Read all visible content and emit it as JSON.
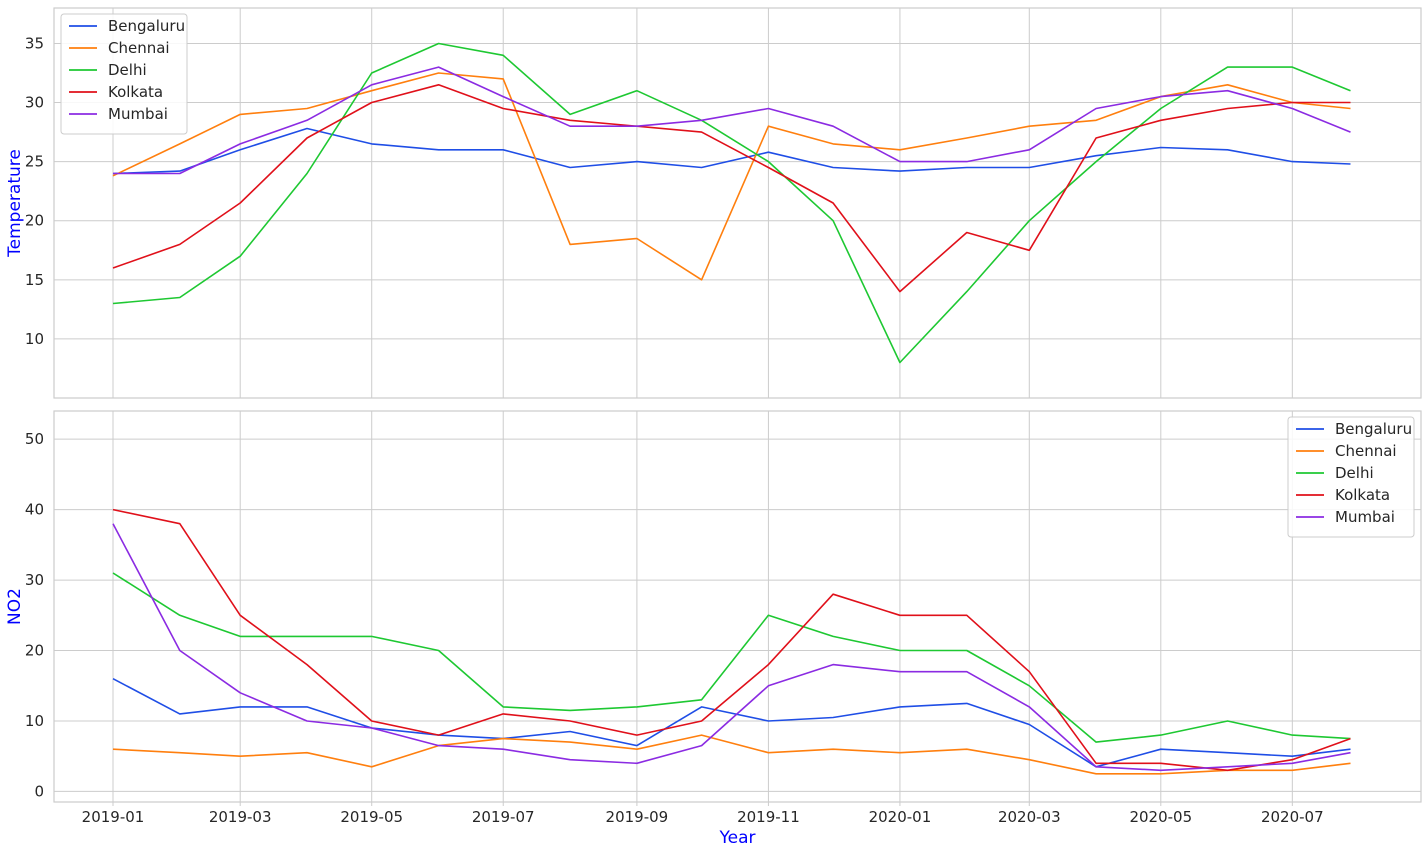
{
  "chart_data": [
    {
      "type": "line",
      "ylabel": "Temperature",
      "xlabel": "",
      "ylim": [
        5.0,
        38.0
      ],
      "yticks": [
        10,
        15,
        20,
        25,
        30,
        35
      ],
      "x_start": "2019-01-01",
      "x_end": "2020-07-31",
      "xticks": [
        "2019-01",
        "2019-03",
        "2019-05",
        "2019-07",
        "2019-09",
        "2019-11",
        "2020-01",
        "2020-03",
        "2020-05",
        "2020-07"
      ],
      "grid": true,
      "legend": "top-left",
      "x": [
        "2019-01-01",
        "2019-02-01",
        "2019-03-01",
        "2019-04-01",
        "2019-05-01",
        "2019-06-01",
        "2019-07-01",
        "2019-08-01",
        "2019-09-01",
        "2019-10-01",
        "2019-11-01",
        "2019-12-01",
        "2020-01-01",
        "2020-02-01",
        "2020-03-01",
        "2020-04-01",
        "2020-05-01",
        "2020-06-01",
        "2020-07-01",
        "2020-07-28"
      ],
      "series": [
        {
          "name": "Bengaluru",
          "color": "#1f4ee6",
          "values": [
            24.0,
            24.2,
            26.0,
            27.8,
            26.5,
            26.0,
            26.0,
            24.5,
            25.0,
            24.5,
            25.8,
            24.5,
            24.2,
            24.5,
            24.5,
            25.5,
            26.2,
            26.0,
            25.0,
            24.8
          ]
        },
        {
          "name": "Chennai",
          "color": "#ff7f0e",
          "values": [
            23.8,
            26.5,
            29.0,
            29.5,
            31.0,
            32.5,
            32.0,
            18.0,
            18.5,
            15.0,
            28.0,
            26.5,
            26.0,
            27.0,
            28.0,
            28.5,
            30.5,
            31.5,
            30.0,
            29.5
          ]
        },
        {
          "name": "Delhi",
          "color": "#1ec832",
          "values": [
            13.0,
            13.5,
            17.0,
            24.0,
            32.5,
            35.0,
            34.0,
            29.0,
            31.0,
            28.5,
            25.0,
            20.0,
            8.0,
            14.0,
            20.0,
            25.0,
            29.5,
            33.0,
            33.0,
            31.0
          ]
        },
        {
          "name": "Kolkata",
          "color": "#e0101a",
          "values": [
            16.0,
            18.0,
            21.5,
            27.0,
            30.0,
            31.5,
            29.5,
            28.5,
            28.0,
            27.5,
            24.5,
            21.5,
            14.0,
            19.0,
            17.5,
            27.0,
            28.5,
            29.5,
            30.0,
            30.0
          ]
        },
        {
          "name": "Mumbai",
          "color": "#8b2be2",
          "values": [
            24.0,
            24.0,
            26.5,
            28.5,
            31.5,
            33.0,
            30.5,
            28.0,
            28.0,
            28.5,
            29.5,
            28.0,
            25.0,
            25.0,
            26.0,
            29.5,
            30.5,
            31.0,
            29.5,
            27.5
          ]
        }
      ]
    },
    {
      "type": "line",
      "ylabel": "NO2",
      "xlabel": "Year",
      "ylim": [
        -1.5,
        54.0
      ],
      "yticks": [
        0,
        10,
        20,
        30,
        40,
        50
      ],
      "x_start": "2019-01-01",
      "x_end": "2020-07-31",
      "xticks": [
        "2019-01",
        "2019-03",
        "2019-05",
        "2019-07",
        "2019-09",
        "2019-11",
        "2020-01",
        "2020-03",
        "2020-05",
        "2020-07"
      ],
      "grid": true,
      "legend": "top-right",
      "x": [
        "2019-01-01",
        "2019-02-01",
        "2019-03-01",
        "2019-04-01",
        "2019-05-01",
        "2019-06-01",
        "2019-07-01",
        "2019-08-01",
        "2019-09-01",
        "2019-10-01",
        "2019-11-01",
        "2019-12-01",
        "2020-01-01",
        "2020-02-01",
        "2020-03-01",
        "2020-04-01",
        "2020-05-01",
        "2020-06-01",
        "2020-07-01",
        "2020-07-28"
      ],
      "series": [
        {
          "name": "Bengaluru",
          "color": "#1f4ee6",
          "values": [
            16.0,
            11.0,
            12.0,
            12.0,
            9.0,
            8.0,
            7.5,
            8.5,
            6.5,
            12.0,
            10.0,
            10.5,
            12.0,
            12.5,
            9.5,
            3.5,
            6.0,
            5.5,
            5.0,
            6.0
          ]
        },
        {
          "name": "Chennai",
          "color": "#ff7f0e",
          "values": [
            6.0,
            5.5,
            5.0,
            5.5,
            3.5,
            6.5,
            7.5,
            7.0,
            6.0,
            8.0,
            5.5,
            6.0,
            5.5,
            6.0,
            4.5,
            2.5,
            2.5,
            3.0,
            3.0,
            4.0
          ]
        },
        {
          "name": "Delhi",
          "color": "#1ec832",
          "values": [
            31.0,
            25.0,
            22.0,
            22.0,
            22.0,
            20.0,
            12.0,
            11.5,
            12.0,
            13.0,
            25.0,
            22.0,
            20.0,
            20.0,
            15.0,
            7.0,
            8.0,
            10.0,
            8.0,
            7.5
          ]
        },
        {
          "name": "Kolkata",
          "color": "#e0101a",
          "values": [
            40.0,
            38.0,
            25.0,
            18.0,
            10.0,
            8.0,
            11.0,
            10.0,
            8.0,
            10.0,
            18.0,
            28.0,
            25.0,
            25.0,
            17.0,
            4.0,
            4.0,
            3.0,
            4.5,
            7.5
          ]
        },
        {
          "name": "Mumbai",
          "color": "#8b2be2",
          "values": [
            38.0,
            20.0,
            14.0,
            10.0,
            9.0,
            6.5,
            6.0,
            4.5,
            4.0,
            6.5,
            15.0,
            18.0,
            17.0,
            17.0,
            12.0,
            3.5,
            3.0,
            3.5,
            4.0,
            5.5
          ]
        }
      ]
    }
  ]
}
